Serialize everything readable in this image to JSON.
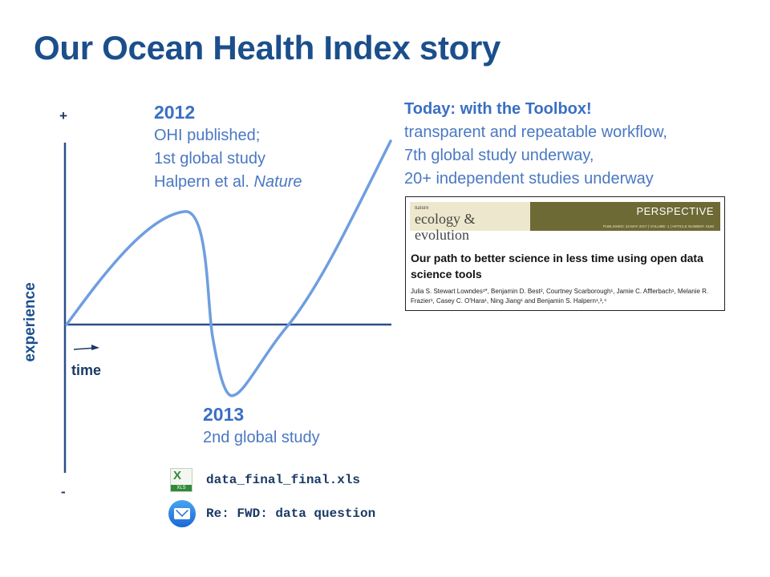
{
  "slide": {
    "title": "Our Ocean Health Index story"
  },
  "axes": {
    "y_label": "experience",
    "x_label": "time",
    "plus_sign": "+",
    "minus_sign": "-"
  },
  "annotations": {
    "y2012": {
      "heading": "2012",
      "line1": "OHI published;",
      "line2": "1st global study",
      "line3_prefix": "Halpern et al. ",
      "line3_italic": "Nature"
    },
    "y2013": {
      "heading": "2013",
      "line1": "2nd global study"
    },
    "today": {
      "heading": "Today: with the Toolbox!",
      "line1": "transparent and repeatable workflow,",
      "line2": "7th global study underway,",
      "line3": "20+ independent studies underway"
    }
  },
  "paper": {
    "journal_small": "nature",
    "journal_name": "ecology & evolution",
    "article_type": "PERSPECTIVE",
    "meta": "PUBLISHED: 23 MAY 2017 | VOLUME: 1 | ARTICLE NUMBER: 0160",
    "title": "Our path to better science in less time using open data science tools",
    "authors": "Julia S. Stewart Lowndes¹*, Benjamin D. Best², Courtney Scarborough¹, Jamie C. Afflerbach¹, Melanie R. Frazier¹, Casey C. O'Hara¹, Ning Jiang¹ and Benjamin S. Halpern¹,³,⁴"
  },
  "files": {
    "spreadsheet": {
      "name": "data_final_final.xls",
      "icon": "excel-file-icon",
      "badge": "XLS"
    },
    "email": {
      "subject": "Re: FWD: data question",
      "icon": "mail-icon"
    }
  },
  "colors": {
    "title": "#1b4f8c",
    "curve": "#6f9ee0",
    "axis": "#2a4f8a",
    "annotation": "#4a78c2"
  }
}
